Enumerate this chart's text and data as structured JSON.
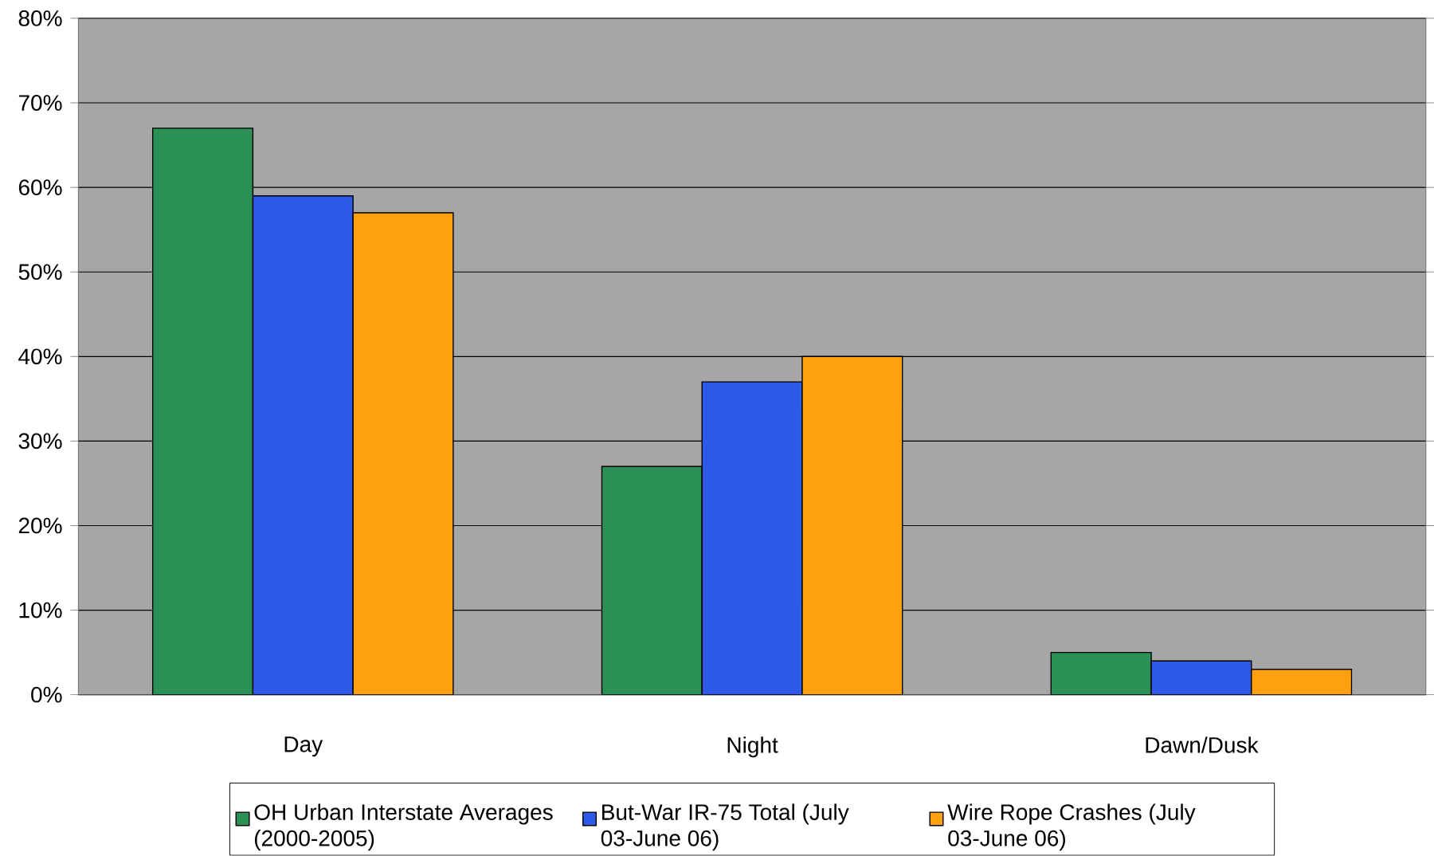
{
  "chart_data": {
    "type": "bar",
    "categories": [
      "Day",
      "Night",
      "Dawn/Dusk"
    ],
    "series": [
      {
        "name": "OH Urban Interstate Averages (2000-2005)",
        "color": "#2a9055",
        "values": [
          67,
          27,
          5
        ]
      },
      {
        "name": "But-War IR-75 Total (July 03-June 06)",
        "color": "#2f5ae8",
        "values": [
          59,
          37,
          4
        ]
      },
      {
        "name": "Wire Rope Crashes (July 03-June 06)",
        "color": "#ffa010",
        "values": [
          57,
          40,
          3
        ]
      }
    ],
    "ylim": [
      0,
      80
    ],
    "yticks": [
      {
        "value": 0,
        "label": "0%"
      },
      {
        "value": 10,
        "label": "10%"
      },
      {
        "value": 20,
        "label": "20%"
      },
      {
        "value": 30,
        "label": "30%"
      },
      {
        "value": 40,
        "label": "40%"
      },
      {
        "value": 50,
        "label": "50%"
      },
      {
        "value": 60,
        "label": "60%"
      },
      {
        "value": 70,
        "label": "70%"
      },
      {
        "value": 80,
        "label": "80%"
      }
    ],
    "grid": "y",
    "legend": "bottom"
  }
}
